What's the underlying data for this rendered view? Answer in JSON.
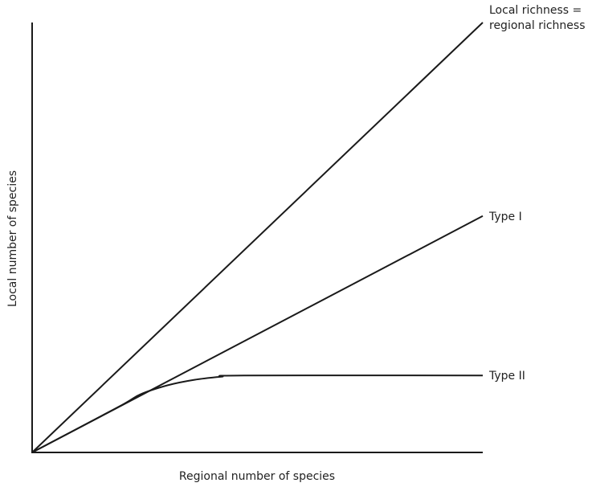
{
  "chart_data": {
    "type": "line",
    "title": "",
    "xlabel": "Regional number of species",
    "ylabel": "Local number of species",
    "xlim": [
      0,
      100
    ],
    "ylim": [
      0,
      100
    ],
    "grid": false,
    "legend": "none",
    "series": [
      {
        "name": "Local richness = regional richness",
        "label_lines": [
          "Local richness =",
          "regional richness"
        ],
        "x": [
          0,
          100
        ],
        "y": [
          0,
          100
        ]
      },
      {
        "name": "Type I",
        "label_lines": [
          "Type I"
        ],
        "x": [
          0,
          100
        ],
        "y": [
          0,
          55
        ]
      },
      {
        "name": "Type II",
        "label_lines": [
          "Type II"
        ],
        "x": [
          0,
          19,
          24,
          30,
          36,
          42,
          47,
          100
        ],
        "y": [
          0,
          10.5,
          13.5,
          15.6,
          16.9,
          17.6,
          17.9,
          17.9
        ]
      }
    ]
  }
}
